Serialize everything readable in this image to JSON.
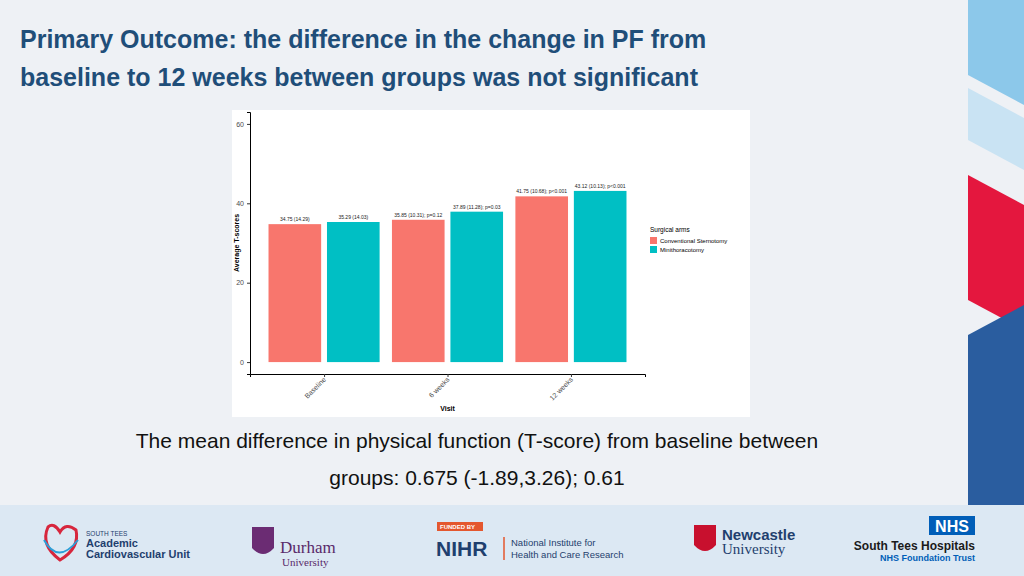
{
  "chart_data": {
    "type": "bar",
    "x_label": "Visit",
    "y_label": "Average T-scores",
    "legend_title": "Surgical arms",
    "categories": [
      "Baseline",
      "6 weeks",
      "12 weeks"
    ],
    "series": [
      {
        "name": "Conventional Sternotomy",
        "color": "#f8766d",
        "values": [
          34.75,
          35.85,
          41.75
        ],
        "value_labels": [
          "34.75 (14.29)",
          "35.85 (10.31); p=0.12",
          "41.75 (10.68); p<0.001"
        ]
      },
      {
        "name": "Minithoracotomy",
        "color": "#00bfc4",
        "values": [
          35.29,
          37.89,
          43.12
        ],
        "value_labels": [
          "35.29 (14.03)",
          "37.89 (11.28); p=0.03",
          "43.12 (10.13); p<0.001"
        ]
      }
    ],
    "ylim": [
      -3,
      63
    ],
    "yticks": [
      0,
      20,
      40,
      60
    ],
    "grid": false,
    "legend": "right",
    "data_labels": true
  },
  "slide": {
    "title": [
      "Primary Outcome: the difference in the change in PF from",
      "baseline to 12 weeks between groups was not significant"
    ],
    "caption": [
      "The mean difference in physical function (T-score) from baseline between",
      "groups: 0.675 (-1.89,3.26); 0.61"
    ],
    "logos": [
      {
        "lines": [
          "SOUTH TEES",
          "Academic",
          "Cardiovascular Unit"
        ]
      },
      {
        "lines": [
          "Durham",
          "University"
        ]
      },
      {
        "lines": [
          "FUNDED BY",
          "NIHR",
          "National Institute for",
          "Health and Care Research"
        ]
      },
      {
        "lines": [
          "Newcastle",
          "University"
        ]
      },
      {
        "lines": [
          "NHS",
          "South Tees Hospitals",
          "NHS Foundation Trust"
        ]
      }
    ]
  }
}
